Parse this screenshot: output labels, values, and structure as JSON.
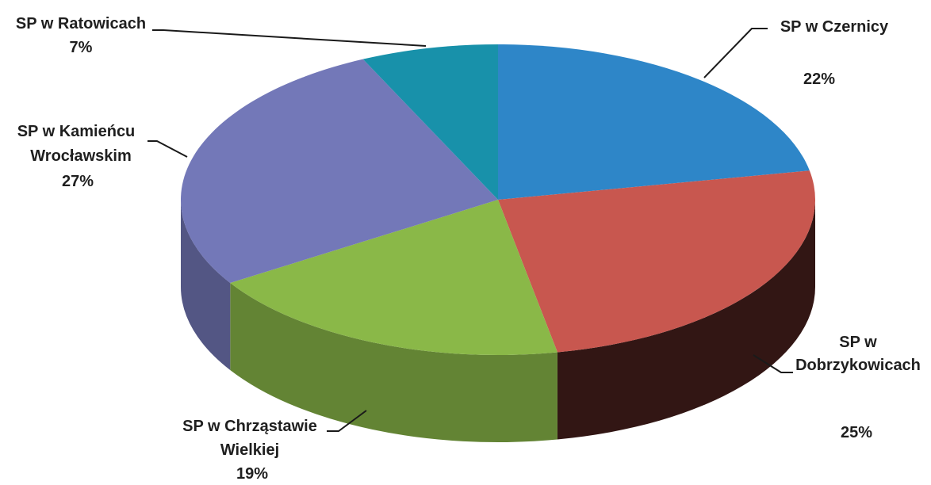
{
  "chart_data": {
    "type": "pie",
    "variant": "3d",
    "slices": [
      {
        "label": [
          "SP w Czernicy"
        ],
        "pct": "22%",
        "value": 22,
        "color": "#2e86c8"
      },
      {
        "label": [
          "SP w",
          "Dobrzykowicach"
        ],
        "pct": "25%",
        "value": 25,
        "color": "#c8574f"
      },
      {
        "label": [
          "SP w Chrząstawie",
          "Wielkiej"
        ],
        "pct": "19%",
        "value": 19,
        "color": "#8ab848"
      },
      {
        "label": [
          "SP w Kamieńcu",
          "Wrocławskim"
        ],
        "pct": "27%",
        "value": 27,
        "color": "#7378b8"
      },
      {
        "label": [
          "SP w Ratowicach"
        ],
        "pct": "7%",
        "value": 7,
        "color": "#1891aa"
      }
    ],
    "start": "12 o'clock",
    "direction": "clockwise"
  }
}
